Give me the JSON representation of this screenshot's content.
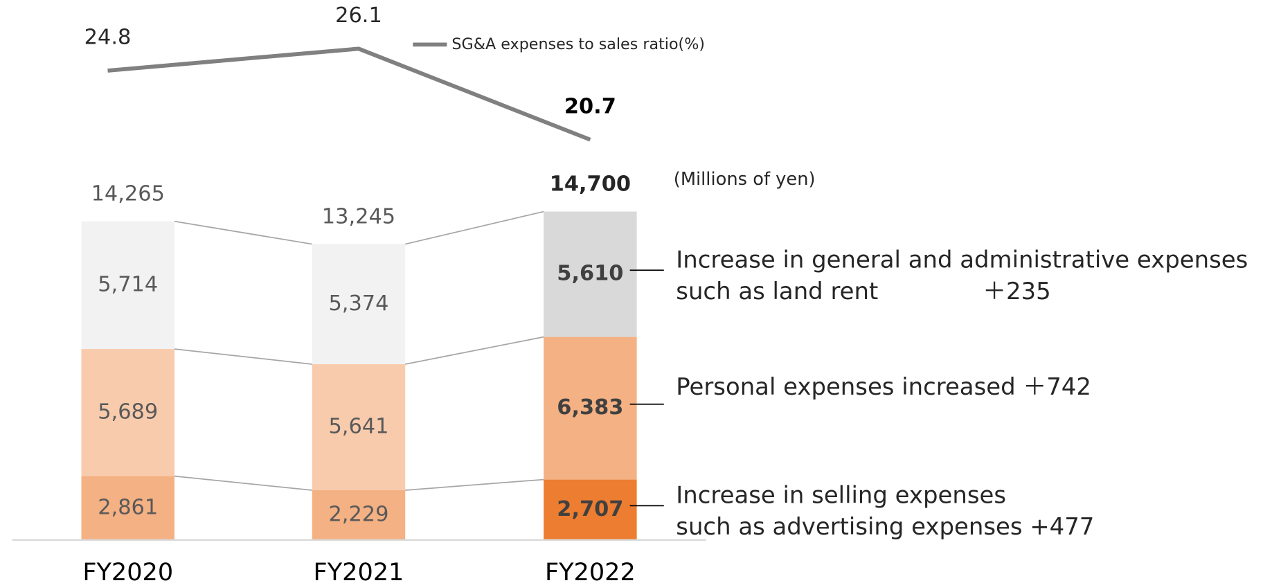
{
  "chart_data": {
    "type": "stacked_bar_line",
    "categories": [
      "FY2020",
      "FY2021",
      "FY2022"
    ],
    "ylim": [
      0,
      20000
    ],
    "y2lim": [
      15,
      30
    ],
    "unit_label": "(Millions of yen)",
    "series": [
      {
        "colors": [
          "#f4b183",
          "#f4b183",
          "#ed7d31"
        ],
        "values": [
          2861,
          2229,
          2707
        ],
        "value_labels": [
          "2,861",
          "2,229",
          "2,707"
        ]
      },
      {
        "colors": [
          "#f8cbad",
          "#f8cbad",
          "#f4b183"
        ],
        "values": [
          5689,
          5641,
          6383
        ],
        "value_labels": [
          "5,689",
          "5,641",
          "6,383"
        ]
      },
      {
        "colors": [
          "#f2f2f2",
          "#f2f2f2",
          "#d9d9d9"
        ],
        "values": [
          5714,
          5374,
          5610
        ],
        "value_labels": [
          "5,714",
          "5,374",
          "5,610"
        ]
      },
      {
        "name": "SG&A expenses to sales ratio(%)",
        "type": "line",
        "axis": "y2",
        "color": "#808080",
        "values": [
          24.8,
          26.1,
          20.7
        ]
      }
    ],
    "totals": {
      "values": [
        14265,
        13245,
        14700
      ],
      "value_labels": [
        "14,265",
        "13,245",
        "14,700"
      ]
    },
    "annotations": [
      {
        "series": 2,
        "lines": [
          "Increase in general and administrative expenses",
          "such as land rent              ＋235"
        ]
      },
      {
        "series": 1,
        "lines": [
          "Personal expenses increased ＋742"
        ]
      },
      {
        "series": 0,
        "lines": [
          "Increase in selling expenses",
          "such as advertising expenses +477"
        ]
      }
    ]
  }
}
